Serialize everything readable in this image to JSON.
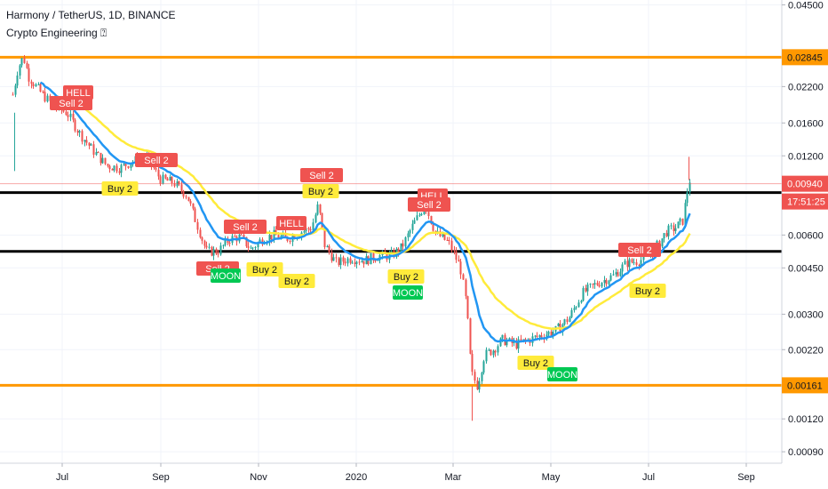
{
  "header": {
    "title": "Harmony / TetherUS, 1D, BINANCE",
    "indicator": "Crypto Engineering ⍰"
  },
  "chart_data": {
    "type": "candlestick",
    "scale": "log",
    "ylim": [
      0.00088,
      0.0455
    ],
    "x_tick_labels": [
      "Jul",
      "Sep",
      "Nov",
      "2020",
      "Mar",
      "May",
      "Jul",
      "Sep"
    ],
    "y_tick_labels": [
      "0.04500",
      "0.02200",
      "0.01600",
      "0.01200",
      "0.00600",
      "0.00450",
      "0.00300",
      "0.00220",
      "0.00120",
      "0.00090"
    ],
    "y_tick_values": [
      0.045,
      0.022,
      0.016,
      0.012,
      0.006,
      0.0045,
      0.003,
      0.0022,
      0.0012,
      0.0009
    ],
    "current_price_label": "0.00940",
    "current_price": 0.0094,
    "countdown_label": "17:51:25",
    "horizontal_levels": [
      {
        "value": 0.02845,
        "label": "0.02845",
        "color": "#ff9800"
      },
      {
        "value": 0.00161,
        "label": "0.00161",
        "color": "#ff9800"
      },
      {
        "value": 0.0087,
        "label": "",
        "color": "#000000"
      },
      {
        "value": 0.0052,
        "label": "",
        "color": "#000000"
      }
    ],
    "signals": [
      {
        "text": "HELL",
        "type": "sell"
      },
      {
        "text": "Sell 2",
        "type": "sell"
      },
      {
        "text": "Sell 2",
        "type": "sell"
      },
      {
        "text": "Buy 2",
        "type": "buy"
      },
      {
        "text": "Sell 2",
        "type": "sell"
      },
      {
        "text": "Sell 2",
        "type": "sell"
      },
      {
        "text": "HELL",
        "type": "sell"
      },
      {
        "text": "Sell 2",
        "type": "sell"
      },
      {
        "text": "Buy 2",
        "type": "buy"
      },
      {
        "text": "MOON",
        "type": "moon"
      },
      {
        "text": "Buy 2",
        "type": "buy"
      },
      {
        "text": "Buy 2",
        "type": "buy"
      },
      {
        "text": "HELL",
        "type": "sell"
      },
      {
        "text": "Sell 2",
        "type": "sell"
      },
      {
        "text": "Buy 2",
        "type": "buy"
      },
      {
        "text": "MOON",
        "type": "moon"
      },
      {
        "text": "Buy 2",
        "type": "buy"
      },
      {
        "text": "MOON",
        "type": "moon"
      },
      {
        "text": "Sell 2",
        "type": "sell"
      },
      {
        "text": "Buy 2",
        "type": "buy"
      }
    ],
    "colors": {
      "up": "#26a69a",
      "down": "#ef5350",
      "fast_ma": "#2196f3",
      "slow_ma": "#ffeb3b",
      "level": "#ff9800",
      "sell_label": "#ef5350",
      "buy_label": "#ffeb3b",
      "moon_label": "#00c853"
    }
  }
}
